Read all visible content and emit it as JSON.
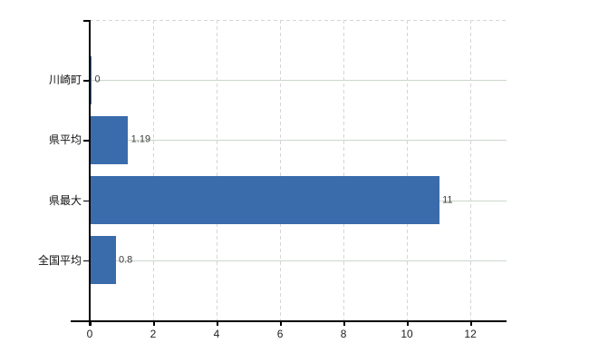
{
  "chart_data": {
    "type": "bar",
    "orientation": "horizontal",
    "title": "",
    "xlabel": "",
    "ylabel": "",
    "categories": [
      "川崎町",
      "県平均",
      "県最大",
      "全国平均"
    ],
    "values": [
      0,
      1.19,
      11,
      0.8
    ],
    "value_labels": [
      "0",
      "1.19",
      "11",
      "0.8"
    ],
    "x_tick_values": [
      0,
      2,
      4,
      6,
      8,
      10,
      12
    ],
    "x_tick_labels": [
      "0",
      "2",
      "4",
      "6",
      "8",
      "10",
      "12"
    ],
    "xlim": [
      0,
      13.14
    ],
    "legend": "none",
    "grid": {
      "horizontal_style": "solid",
      "vertical_style": "dashed",
      "top_border_style": "dashed"
    }
  },
  "colors": {
    "bar_fill": "#3a6cac",
    "horizontal_grid": "#ccd6cc",
    "vertical_grid": "#d9d3d6",
    "top_border": "#d9d3d6",
    "axis": "#000000",
    "value_label": "#3c3c3c",
    "category_label": "#111111",
    "x_tick_label": "#222222",
    "background": "#ffffff"
  }
}
